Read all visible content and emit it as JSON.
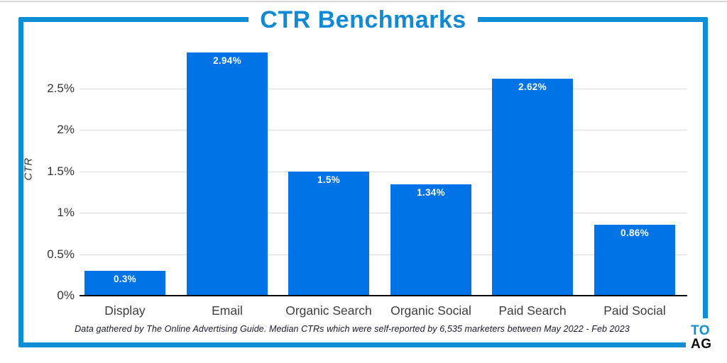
{
  "title": "CTR Benchmarks",
  "chart_data": {
    "type": "bar",
    "categories": [
      "Display",
      "Email",
      "Organic Search",
      "Organic Social",
      "Paid Search",
      "Paid Social"
    ],
    "values": [
      0.3,
      2.94,
      1.5,
      1.34,
      2.62,
      0.86
    ],
    "value_labels": [
      "0.3%",
      "2.94%",
      "1.5%",
      "1.34%",
      "2.62%",
      "0.86%"
    ],
    "title": "CTR Benchmarks",
    "xlabel": "",
    "ylabel": "CTR",
    "ylim": [
      0,
      3
    ],
    "ytick_values": [
      0,
      0.5,
      1,
      1.5,
      2,
      2.5
    ],
    "ytick_labels": [
      "0%",
      "0.5%",
      "1%",
      "1.5%",
      "2%",
      "2.5%"
    ],
    "grid": true,
    "legend_position": "none",
    "bar_color": "#0073e6",
    "label_color": "#ffffff"
  },
  "colors": {
    "accent_blue": "#0e8ed4",
    "title_blue": "#1289d3",
    "bar_blue": "#0073e6",
    "gridline_gray": "#d9d9d9",
    "axis_black": "#000000"
  },
  "footer": {
    "text": "Data gathered by The Online Advertising Guide. Median CTRs which were self-reported by 6,535 marketers between May 2022 - Feb 2023"
  },
  "logo": {
    "line1": "TO",
    "line2": "AG"
  }
}
